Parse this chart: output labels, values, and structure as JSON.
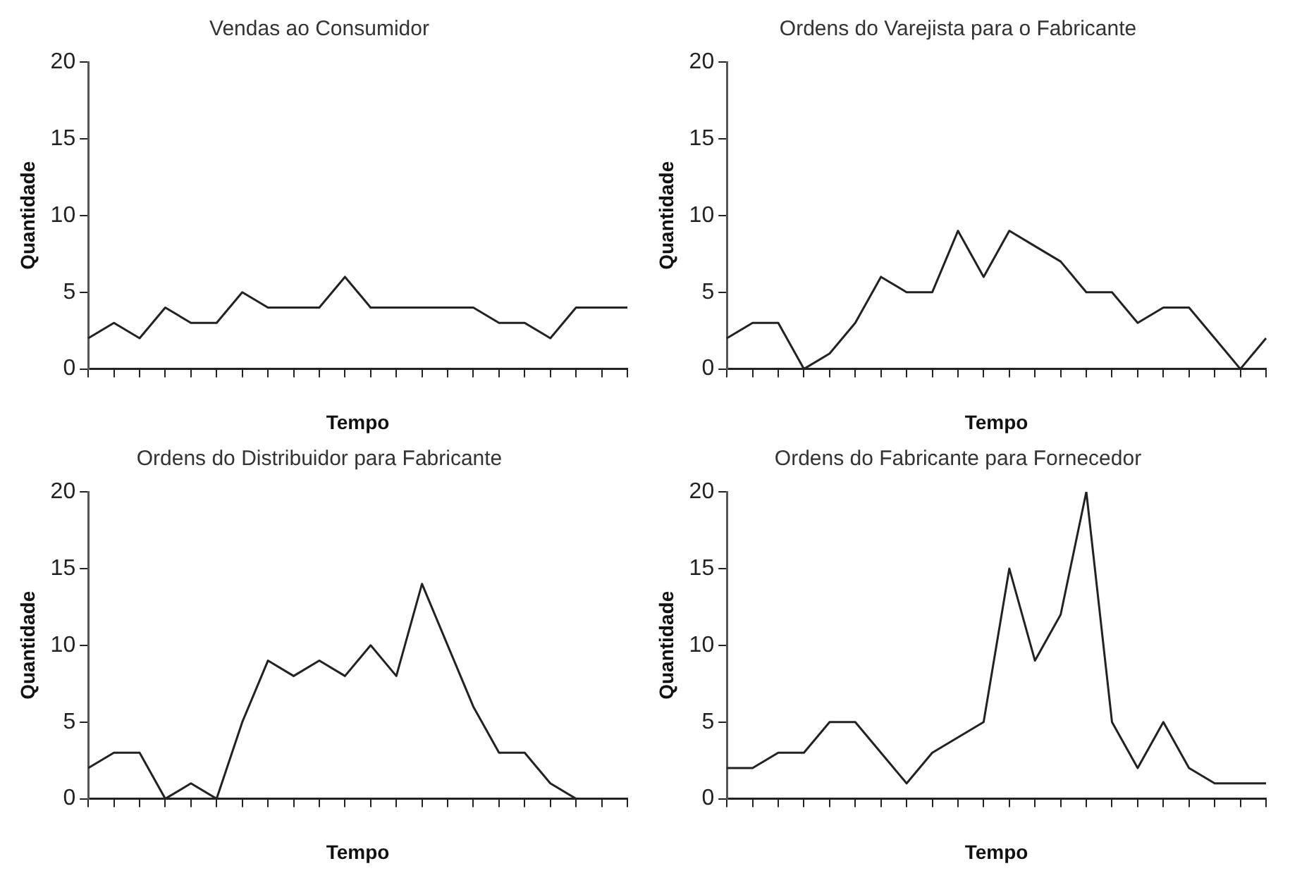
{
  "chart_data": [
    {
      "type": "line",
      "title": "Vendas ao Consumidor",
      "xlabel": "Tempo",
      "ylabel": "Quantidade",
      "categories": [
        null,
        null,
        null,
        null,
        null,
        null,
        null,
        null,
        null,
        null,
        null,
        null,
        null,
        null,
        null,
        null,
        null,
        null,
        null,
        null,
        null,
        null
      ],
      "series": [
        {
          "color": "#222222",
          "values": [
            2,
            3,
            2,
            4,
            3,
            3,
            5,
            4,
            4,
            4,
            6,
            4,
            4,
            4,
            4,
            4,
            3,
            3,
            2,
            4,
            4,
            4
          ]
        }
      ],
      "ylim": [
        0,
        20
      ],
      "yticks": [
        0,
        5,
        10,
        15,
        20
      ],
      "grid": false,
      "legend": false,
      "marker": "none",
      "line_style": "solid"
    },
    {
      "type": "line",
      "title": "Ordens do Varejista para o Fabricante",
      "xlabel": "Tempo",
      "ylabel": "Quantidade",
      "categories": [
        null,
        null,
        null,
        null,
        null,
        null,
        null,
        null,
        null,
        null,
        null,
        null,
        null,
        null,
        null,
        null,
        null,
        null,
        null,
        null,
        null,
        null
      ],
      "series": [
        {
          "color": "#222222",
          "values": [
            2,
            3,
            3,
            0,
            1,
            3,
            6,
            5,
            5,
            9,
            6,
            9,
            8,
            7,
            5,
            5,
            3,
            4,
            4,
            2,
            0,
            2
          ]
        }
      ],
      "ylim": [
        0,
        20
      ],
      "yticks": [
        0,
        5,
        10,
        15,
        20
      ],
      "grid": false,
      "legend": false,
      "marker": "none",
      "line_style": "solid"
    },
    {
      "type": "line",
      "title": "Ordens do Distribuidor para Fabricante",
      "xlabel": "Tempo",
      "ylabel": "Quantidade",
      "categories": [
        null,
        null,
        null,
        null,
        null,
        null,
        null,
        null,
        null,
        null,
        null,
        null,
        null,
        null,
        null,
        null,
        null,
        null,
        null,
        null,
        null,
        null
      ],
      "series": [
        {
          "color": "#222222",
          "values": [
            2,
            3,
            3,
            0,
            1,
            0,
            5,
            9,
            8,
            9,
            8,
            10,
            8,
            14,
            10,
            6,
            3,
            3,
            1,
            0,
            null,
            null
          ]
        }
      ],
      "ylim": [
        0,
        20
      ],
      "yticks": [
        0,
        5,
        10,
        15,
        20
      ],
      "grid": false,
      "legend": false,
      "marker": "none",
      "line_style": "solid"
    },
    {
      "type": "line",
      "title": "Ordens do Fabricante para Fornecedor",
      "xlabel": "Tempo",
      "ylabel": "Quantidade",
      "categories": [
        null,
        null,
        null,
        null,
        null,
        null,
        null,
        null,
        null,
        null,
        null,
        null,
        null,
        null,
        null,
        null,
        null,
        null,
        null,
        null,
        null,
        null
      ],
      "series": [
        {
          "color": "#222222",
          "values": [
            2,
            2,
            3,
            3,
            5,
            5,
            3,
            1,
            3,
            4,
            5,
            15,
            9,
            12,
            20,
            5,
            2,
            5,
            2,
            1,
            1,
            1
          ]
        }
      ],
      "ylim": [
        0,
        20
      ],
      "yticks": [
        0,
        5,
        10,
        15,
        20
      ],
      "grid": false,
      "legend": false,
      "marker": "none",
      "line_style": "solid"
    }
  ]
}
